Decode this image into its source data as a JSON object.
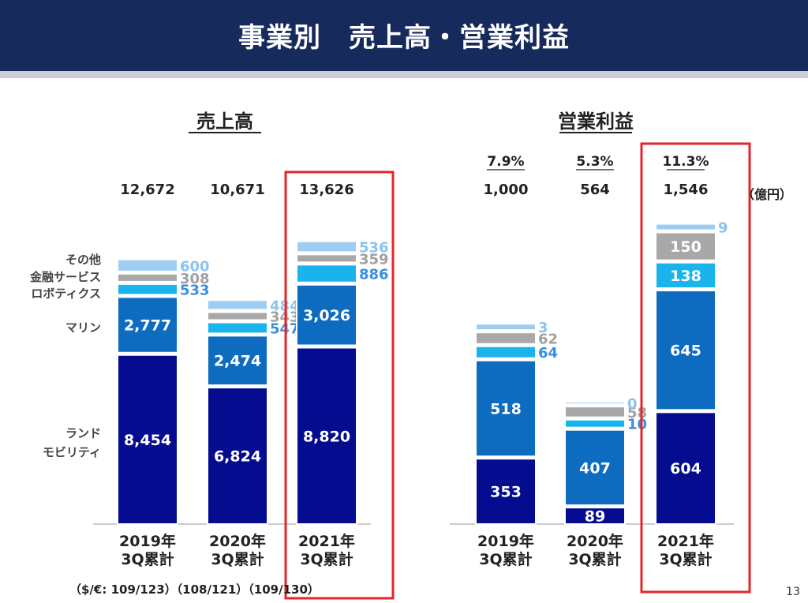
{
  "header": {
    "title": "事業別　売上高・営業利益"
  },
  "page_number": "13",
  "fx_note": "（$/€: 109/123）（108/121）（109/130）",
  "unit": "（億円）",
  "colors": {
    "land_mobility": "#050c8f",
    "marine": "#0d6cbf",
    "robotics": "#19b4eb",
    "financial": "#a8a8a8",
    "other": "#9fcdf2",
    "highlight": "#e3262b"
  },
  "categories": [
    "2019年\n3Q累計",
    "2020年\n3Q累計",
    "2021年\n3Q累計"
  ],
  "segment_labels": [
    {
      "key": "other",
      "text": "その他"
    },
    {
      "key": "financial",
      "text": "金融サービス"
    },
    {
      "key": "robotics",
      "text": "ロボティクス"
    },
    {
      "key": "marine",
      "text": "マリン"
    },
    {
      "key": "land_mobility",
      "text": "ランド\nモビリティ"
    }
  ],
  "chart_data": [
    {
      "type": "bar",
      "stacked": true,
      "title": "売上高",
      "categories": [
        "2019年\n3Q累計",
        "2020年\n3Q累計",
        "2021年\n3Q累計"
      ],
      "totals": [
        "12,672",
        "10,671",
        "13,626"
      ],
      "series": [
        {
          "name": "ランドモビリティ",
          "key": "land_mobility",
          "values": [
            8454,
            6824,
            8820
          ]
        },
        {
          "name": "マリン",
          "key": "marine",
          "values": [
            2777,
            2474,
            3026
          ]
        },
        {
          "name": "ロボティクス",
          "key": "robotics",
          "values": [
            533,
            547,
            886
          ]
        },
        {
          "name": "金融サービス",
          "key": "financial",
          "values": [
            308,
            343,
            359
          ]
        },
        {
          "name": "その他",
          "key": "other",
          "values": [
            600,
            484,
            536
          ]
        }
      ],
      "highlight_category": 2
    },
    {
      "type": "bar",
      "stacked": true,
      "title": "営業利益",
      "categories": [
        "2019年\n3Q累計",
        "2020年\n3Q累計",
        "2021年\n3Q累計"
      ],
      "margins": [
        "7.9%",
        "5.3%",
        "11.3%"
      ],
      "totals": [
        "1,000",
        "564",
        "1,546"
      ],
      "series": [
        {
          "name": "ランドモビリティ",
          "key": "land_mobility",
          "values": [
            353,
            89,
            604
          ]
        },
        {
          "name": "マリン",
          "key": "marine",
          "values": [
            518,
            407,
            645
          ]
        },
        {
          "name": "ロボティクス",
          "key": "robotics",
          "values": [
            64,
            10,
            138
          ]
        },
        {
          "name": "金融サービス",
          "key": "financial",
          "values": [
            62,
            58,
            150
          ]
        },
        {
          "name": "その他",
          "key": "other",
          "values": [
            3,
            0,
            9
          ]
        }
      ],
      "highlight_category": 2
    }
  ]
}
